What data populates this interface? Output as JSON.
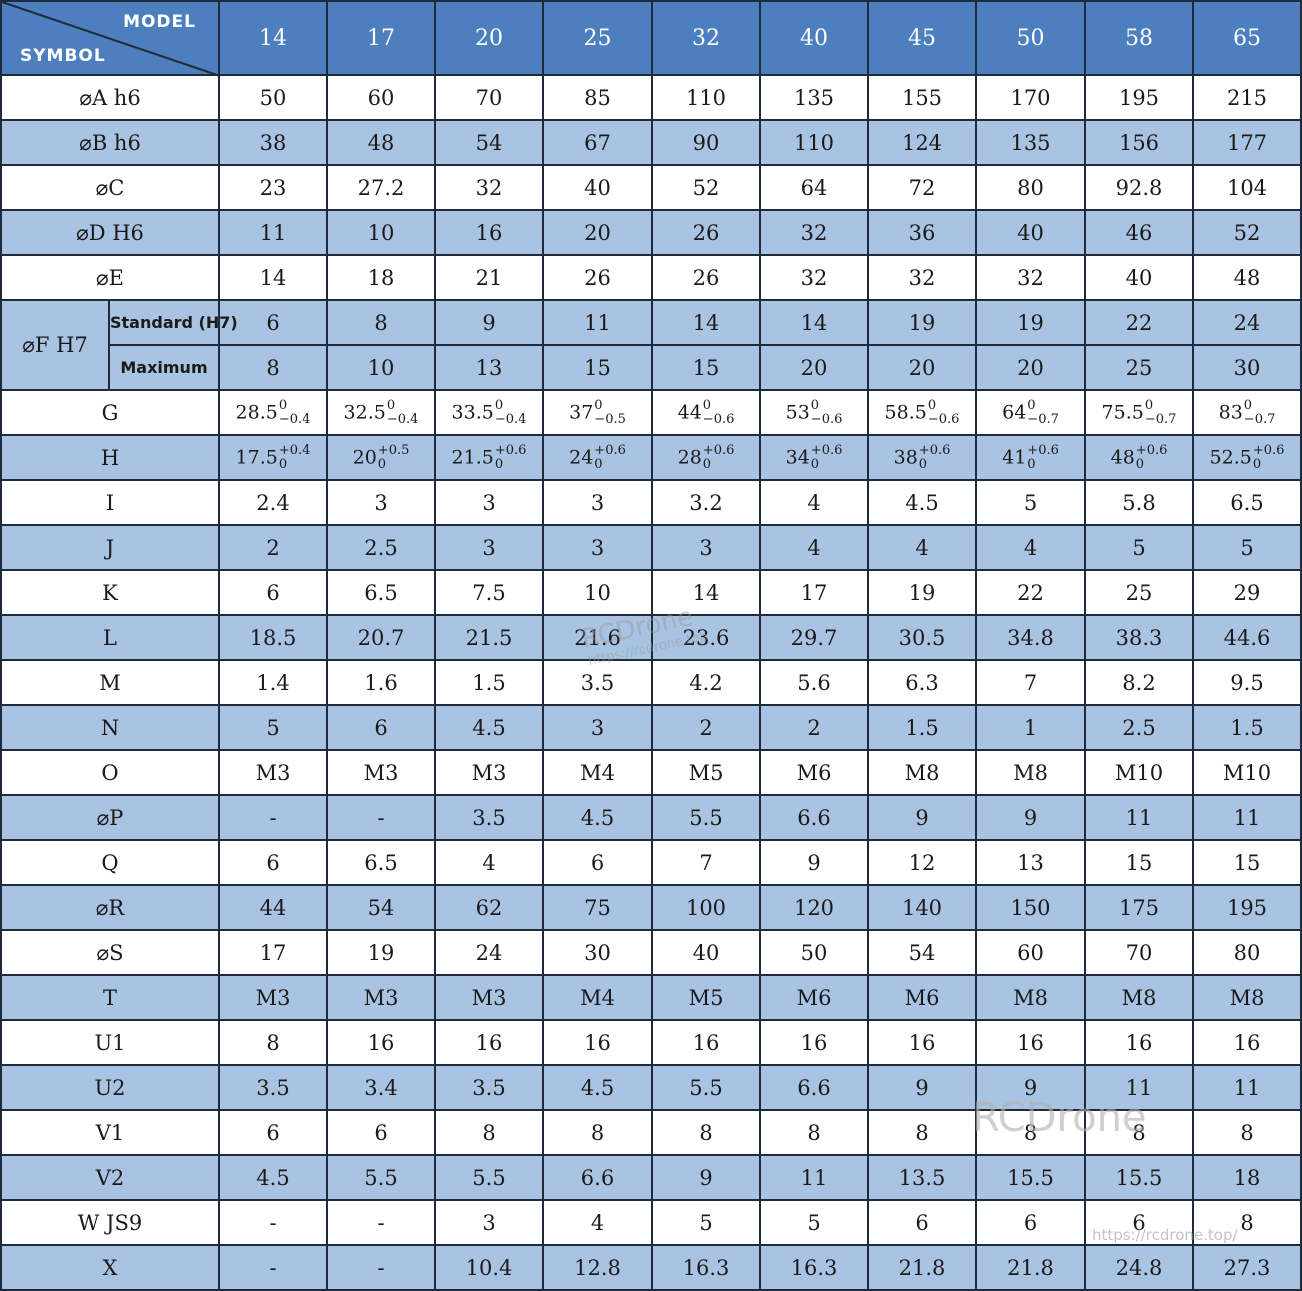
{
  "header": {
    "model_label": "MODEL",
    "symbol_label": "SYMBOL",
    "models": [
      "14",
      "17",
      "20",
      "25",
      "32",
      "40",
      "45",
      "50",
      "58",
      "65"
    ]
  },
  "rows_top": [
    {
      "symbol": "⌀A h6",
      "values": [
        "50",
        "60",
        "70",
        "85",
        "110",
        "135",
        "155",
        "170",
        "195",
        "215"
      ]
    },
    {
      "symbol": "⌀B h6",
      "values": [
        "38",
        "48",
        "54",
        "67",
        "90",
        "110",
        "124",
        "135",
        "156",
        "177"
      ]
    },
    {
      "symbol": "⌀C",
      "values": [
        "23",
        "27.2",
        "32",
        "40",
        "52",
        "64",
        "72",
        "80",
        "92.8",
        "104"
      ]
    },
    {
      "symbol": "⌀D H6",
      "values": [
        "11",
        "10",
        "16",
        "20",
        "26",
        "32",
        "36",
        "40",
        "46",
        "52"
      ]
    },
    {
      "symbol": "⌀E",
      "values": [
        "14",
        "18",
        "21",
        "26",
        "26",
        "32",
        "32",
        "32",
        "40",
        "48"
      ]
    }
  ],
  "row_f": {
    "symbol": "⌀F H7",
    "standard_label": "Standard (H7)",
    "maximum_label": "Maximum",
    "standard": [
      "6",
      "8",
      "9",
      "11",
      "14",
      "14",
      "19",
      "19",
      "22",
      "24"
    ],
    "maximum": [
      "8",
      "10",
      "13",
      "15",
      "15",
      "20",
      "20",
      "20",
      "25",
      "30"
    ]
  },
  "row_g": {
    "symbol": "G",
    "values": [
      {
        "base": "28.5",
        "upper": "0",
        "lower": "−0.4"
      },
      {
        "base": "32.5",
        "upper": "0",
        "lower": "−0.4"
      },
      {
        "base": "33.5",
        "upper": "0",
        "lower": "−0.4"
      },
      {
        "base": "37",
        "upper": "0",
        "lower": "−0.5"
      },
      {
        "base": "44",
        "upper": "0",
        "lower": "−0.6"
      },
      {
        "base": "53",
        "upper": "0",
        "lower": "−0.6"
      },
      {
        "base": "58.5",
        "upper": "0",
        "lower": "−0.6"
      },
      {
        "base": "64",
        "upper": "0",
        "lower": "−0.7"
      },
      {
        "base": "75.5",
        "upper": "0",
        "lower": "−0.7"
      },
      {
        "base": "83",
        "upper": "0",
        "lower": "−0.7"
      }
    ]
  },
  "row_h": {
    "symbol": "H",
    "values": [
      {
        "base": "17.5",
        "upper": "+0.4",
        "lower": "0"
      },
      {
        "base": "20",
        "upper": "+0.5",
        "lower": "0"
      },
      {
        "base": "21.5",
        "upper": "+0.6",
        "lower": "0"
      },
      {
        "base": "24",
        "upper": "+0.6",
        "lower": "0"
      },
      {
        "base": "28",
        "upper": "+0.6",
        "lower": "0"
      },
      {
        "base": "34",
        "upper": "+0.6",
        "lower": "0"
      },
      {
        "base": "38",
        "upper": "+0.6",
        "lower": "0"
      },
      {
        "base": "41",
        "upper": "+0.6",
        "lower": "0"
      },
      {
        "base": "48",
        "upper": "+0.6",
        "lower": "0"
      },
      {
        "base": "52.5",
        "upper": "+0.6",
        "lower": "0"
      }
    ]
  },
  "rows_bottom": [
    {
      "symbol": "I",
      "values": [
        "2.4",
        "3",
        "3",
        "3",
        "3.2",
        "4",
        "4.5",
        "5",
        "5.8",
        "6.5"
      ]
    },
    {
      "symbol": "J",
      "values": [
        "2",
        "2.5",
        "3",
        "3",
        "3",
        "4",
        "4",
        "4",
        "5",
        "5"
      ]
    },
    {
      "symbol": "K",
      "values": [
        "6",
        "6.5",
        "7.5",
        "10",
        "14",
        "17",
        "19",
        "22",
        "25",
        "29"
      ]
    },
    {
      "symbol": "L",
      "values": [
        "18.5",
        "20.7",
        "21.5",
        "21.6",
        "23.6",
        "29.7",
        "30.5",
        "34.8",
        "38.3",
        "44.6"
      ]
    },
    {
      "symbol": "M",
      "values": [
        "1.4",
        "1.6",
        "1.5",
        "3.5",
        "4.2",
        "5.6",
        "6.3",
        "7",
        "8.2",
        "9.5"
      ]
    },
    {
      "symbol": "N",
      "values": [
        "5",
        "6",
        "4.5",
        "3",
        "2",
        "2",
        "1.5",
        "1",
        "2.5",
        "1.5"
      ]
    },
    {
      "symbol": "O",
      "values": [
        "M3",
        "M3",
        "M3",
        "M4",
        "M5",
        "M6",
        "M8",
        "M8",
        "M10",
        "M10"
      ]
    },
    {
      "symbol": "⌀P",
      "values": [
        "-",
        "-",
        "3.5",
        "4.5",
        "5.5",
        "6.6",
        "9",
        "9",
        "11",
        "11"
      ]
    },
    {
      "symbol": "Q",
      "values": [
        "6",
        "6.5",
        "4",
        "6",
        "7",
        "9",
        "12",
        "13",
        "15",
        "15"
      ]
    },
    {
      "symbol": "⌀R",
      "values": [
        "44",
        "54",
        "62",
        "75",
        "100",
        "120",
        "140",
        "150",
        "175",
        "195"
      ]
    },
    {
      "symbol": "⌀S",
      "values": [
        "17",
        "19",
        "24",
        "30",
        "40",
        "50",
        "54",
        "60",
        "70",
        "80"
      ]
    },
    {
      "symbol": "T",
      "values": [
        "M3",
        "M3",
        "M3",
        "M4",
        "M5",
        "M6",
        "M6",
        "M8",
        "M8",
        "M8"
      ]
    },
    {
      "symbol": "U1",
      "values": [
        "8",
        "16",
        "16",
        "16",
        "16",
        "16",
        "16",
        "16",
        "16",
        "16"
      ]
    },
    {
      "symbol": "U2",
      "values": [
        "3.5",
        "3.4",
        "3.5",
        "4.5",
        "5.5",
        "6.6",
        "9",
        "9",
        "11",
        "11"
      ]
    },
    {
      "symbol": "V1",
      "values": [
        "6",
        "6",
        "8",
        "8",
        "8",
        "8",
        "8",
        "8",
        "8",
        "8"
      ]
    },
    {
      "symbol": "V2",
      "values": [
        "4.5",
        "5.5",
        "5.5",
        "6.6",
        "9",
        "11",
        "13.5",
        "15.5",
        "15.5",
        "18"
      ]
    },
    {
      "symbol": "W JS9",
      "values": [
        "-",
        "-",
        "3",
        "4",
        "5",
        "5",
        "6",
        "6",
        "6",
        "8"
      ]
    },
    {
      "symbol": "X",
      "values": [
        "-",
        "-",
        "10.4",
        "12.8",
        "16.3",
        "16.3",
        "21.8",
        "21.8",
        "24.8",
        "27.3"
      ]
    }
  ],
  "watermark": {
    "brand": "RCDrone",
    "url_small": "https://rcdrone.top",
    "url": "https://rcdrone.top/"
  }
}
